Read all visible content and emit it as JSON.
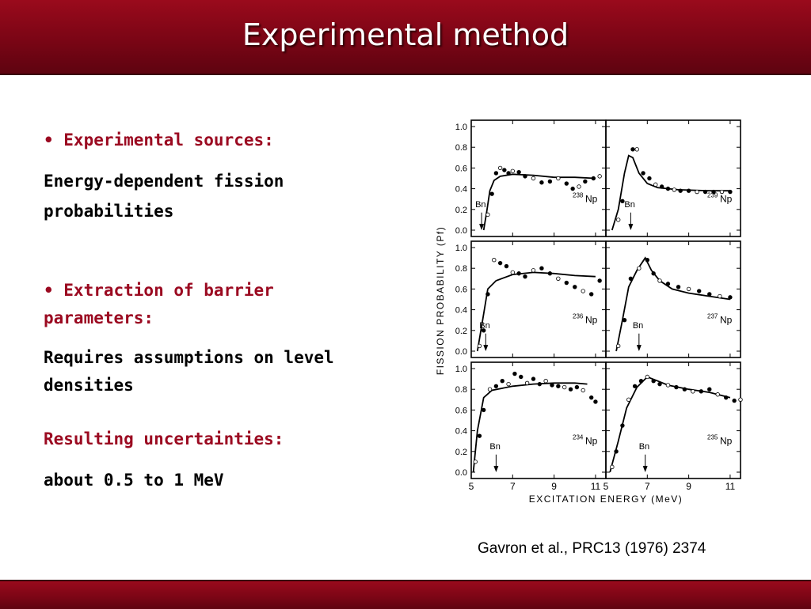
{
  "slide": {
    "title": "Experimental method",
    "bullets": [
      {
        "heading": "• Experimental sources:",
        "body": [
          "Energy-dependent fission",
          "probabilities"
        ]
      },
      {
        "heading": [
          "• Extraction of barrier",
          "parameters:"
        ],
        "body": [
          "Requires assumptions on level",
          "densities"
        ]
      }
    ],
    "uncertainty": {
      "heading": "Resulting uncertainties:",
      "body": "about 0.5 to 1 MeV"
    },
    "citation": "Gavron et al., PRC13 (1976) 2374",
    "colors": {
      "accent": "#9b0a21",
      "band": "#7a0515"
    }
  },
  "chart_data": {
    "type": "scatter",
    "xlabel": "EXCITATION ENERGY (MeV)",
    "ylabel": "FISSION PROBABILITY (Pf)",
    "xlim": [
      5,
      11.5
    ],
    "ylim": [
      0,
      1.0
    ],
    "x_ticks": [
      "5",
      "7",
      "9",
      "11"
    ],
    "y_ticks": [
      "0.0",
      "0.2",
      "0.4",
      "0.6",
      "0.8",
      "1.0"
    ],
    "marker_label": "Bn",
    "panels": [
      {
        "nucleus": "238Np",
        "mass": "238",
        "element": "Np",
        "bn": 5.5,
        "curve": [
          [
            5.6,
            0.0
          ],
          [
            5.75,
            0.18
          ],
          [
            5.9,
            0.38
          ],
          [
            6.1,
            0.48
          ],
          [
            6.4,
            0.52
          ],
          [
            7.0,
            0.54
          ],
          [
            8.0,
            0.53
          ],
          [
            9.0,
            0.51
          ],
          [
            10.0,
            0.51
          ],
          [
            11.0,
            0.5
          ]
        ],
        "points": [
          [
            5.8,
            0.15
          ],
          [
            6.0,
            0.35
          ],
          [
            6.2,
            0.55
          ],
          [
            6.4,
            0.6
          ],
          [
            6.6,
            0.58
          ],
          [
            6.8,
            0.55
          ],
          [
            7.0,
            0.57
          ],
          [
            7.3,
            0.56
          ],
          [
            7.6,
            0.52
          ],
          [
            8.0,
            0.5
          ],
          [
            8.4,
            0.46
          ],
          [
            8.8,
            0.47
          ],
          [
            9.2,
            0.5
          ],
          [
            9.6,
            0.45
          ],
          [
            9.9,
            0.4
          ],
          [
            10.2,
            0.42
          ],
          [
            10.5,
            0.47
          ],
          [
            10.9,
            0.5
          ],
          [
            11.2,
            0.52
          ]
        ]
      },
      {
        "nucleus": "239Np",
        "mass": "239",
        "element": "Np",
        "bn": 6.2,
        "curve": [
          [
            5.3,
            0.0
          ],
          [
            5.6,
            0.2
          ],
          [
            5.9,
            0.55
          ],
          [
            6.1,
            0.72
          ],
          [
            6.3,
            0.7
          ],
          [
            6.6,
            0.55
          ],
          [
            7.0,
            0.45
          ],
          [
            7.5,
            0.41
          ],
          [
            8.5,
            0.39
          ],
          [
            10.0,
            0.38
          ],
          [
            11.0,
            0.38
          ]
        ],
        "points": [
          [
            5.6,
            0.1
          ],
          [
            5.8,
            0.28
          ],
          [
            6.3,
            0.78
          ],
          [
            6.5,
            0.78
          ],
          [
            6.8,
            0.55
          ],
          [
            7.1,
            0.5
          ],
          [
            7.4,
            0.44
          ],
          [
            7.7,
            0.42
          ],
          [
            8.0,
            0.4
          ],
          [
            8.3,
            0.39
          ],
          [
            8.6,
            0.38
          ],
          [
            9.0,
            0.38
          ],
          [
            9.4,
            0.37
          ],
          [
            9.8,
            0.37
          ],
          [
            10.2,
            0.37
          ],
          [
            10.6,
            0.37
          ],
          [
            11.0,
            0.37
          ]
        ]
      },
      {
        "nucleus": "236Np",
        "mass": "236",
        "element": "Np",
        "bn": 5.7,
        "curve": [
          [
            5.3,
            0.0
          ],
          [
            5.55,
            0.3
          ],
          [
            5.8,
            0.6
          ],
          [
            6.2,
            0.68
          ],
          [
            7.0,
            0.74
          ],
          [
            8.0,
            0.76
          ],
          [
            9.0,
            0.75
          ],
          [
            10.0,
            0.73
          ],
          [
            11.0,
            0.72
          ]
        ],
        "points": [
          [
            5.4,
            0.05
          ],
          [
            5.6,
            0.2
          ],
          [
            5.8,
            0.55
          ],
          [
            6.1,
            0.88
          ],
          [
            6.4,
            0.85
          ],
          [
            6.7,
            0.82
          ],
          [
            7.0,
            0.76
          ],
          [
            7.3,
            0.75
          ],
          [
            7.6,
            0.72
          ],
          [
            8.0,
            0.78
          ],
          [
            8.4,
            0.8
          ],
          [
            8.8,
            0.75
          ],
          [
            9.2,
            0.7
          ],
          [
            9.6,
            0.66
          ],
          [
            10.0,
            0.62
          ],
          [
            10.4,
            0.58
          ],
          [
            10.8,
            0.55
          ],
          [
            11.2,
            0.68
          ]
        ]
      },
      {
        "nucleus": "237Np",
        "mass": "237",
        "element": "Np",
        "bn": 6.6,
        "curve": [
          [
            5.5,
            0.0
          ],
          [
            5.8,
            0.3
          ],
          [
            6.1,
            0.62
          ],
          [
            6.5,
            0.78
          ],
          [
            6.9,
            0.9
          ],
          [
            7.2,
            0.78
          ],
          [
            7.6,
            0.68
          ],
          [
            8.2,
            0.6
          ],
          [
            9.0,
            0.56
          ],
          [
            10.0,
            0.53
          ],
          [
            11.0,
            0.5
          ]
        ],
        "points": [
          [
            5.6,
            0.05
          ],
          [
            5.9,
            0.3
          ],
          [
            6.2,
            0.7
          ],
          [
            6.6,
            0.8
          ],
          [
            7.0,
            0.88
          ],
          [
            7.3,
            0.75
          ],
          [
            7.6,
            0.68
          ],
          [
            8.0,
            0.65
          ],
          [
            8.5,
            0.62
          ],
          [
            9.0,
            0.6
          ],
          [
            9.5,
            0.58
          ],
          [
            10.0,
            0.55
          ],
          [
            10.5,
            0.53
          ],
          [
            11.0,
            0.52
          ]
        ]
      },
      {
        "nucleus": "234Np",
        "mass": "234",
        "element": "Np",
        "bn": 6.2,
        "curve": [
          [
            5.1,
            0.0
          ],
          [
            5.3,
            0.4
          ],
          [
            5.6,
            0.72
          ],
          [
            6.0,
            0.79
          ],
          [
            7.0,
            0.83
          ],
          [
            8.0,
            0.85
          ],
          [
            9.0,
            0.86
          ],
          [
            10.0,
            0.86
          ],
          [
            10.6,
            0.85
          ]
        ],
        "points": [
          [
            5.2,
            0.1
          ],
          [
            5.4,
            0.35
          ],
          [
            5.6,
            0.6
          ],
          [
            5.9,
            0.8
          ],
          [
            6.2,
            0.83
          ],
          [
            6.5,
            0.88
          ],
          [
            6.8,
            0.85
          ],
          [
            7.1,
            0.95
          ],
          [
            7.4,
            0.92
          ],
          [
            7.7,
            0.86
          ],
          [
            8.0,
            0.9
          ],
          [
            8.3,
            0.85
          ],
          [
            8.6,
            0.88
          ],
          [
            8.9,
            0.84
          ],
          [
            9.2,
            0.83
          ],
          [
            9.5,
            0.82
          ],
          [
            9.8,
            0.8
          ],
          [
            10.1,
            0.82
          ],
          [
            10.4,
            0.79
          ],
          [
            10.8,
            0.72
          ],
          [
            11.0,
            0.68
          ]
        ]
      },
      {
        "nucleus": "235Np",
        "mass": "235",
        "element": "Np",
        "bn": 6.9,
        "curve": [
          [
            5.2,
            0.0
          ],
          [
            5.6,
            0.3
          ],
          [
            6.0,
            0.62
          ],
          [
            6.5,
            0.82
          ],
          [
            7.0,
            0.92
          ],
          [
            7.5,
            0.88
          ],
          [
            8.0,
            0.84
          ],
          [
            9.0,
            0.8
          ],
          [
            10.0,
            0.77
          ],
          [
            11.0,
            0.72
          ]
        ],
        "points": [
          [
            5.3,
            0.05
          ],
          [
            5.5,
            0.2
          ],
          [
            5.8,
            0.45
          ],
          [
            6.1,
            0.7
          ],
          [
            6.4,
            0.83
          ],
          [
            6.7,
            0.88
          ],
          [
            7.0,
            0.92
          ],
          [
            7.3,
            0.88
          ],
          [
            7.6,
            0.85
          ],
          [
            8.0,
            0.84
          ],
          [
            8.4,
            0.82
          ],
          [
            8.8,
            0.8
          ],
          [
            9.2,
            0.78
          ],
          [
            9.6,
            0.78
          ],
          [
            10.0,
            0.8
          ],
          [
            10.4,
            0.75
          ],
          [
            10.8,
            0.72
          ],
          [
            11.2,
            0.69
          ],
          [
            11.5,
            0.7
          ]
        ]
      }
    ]
  }
}
